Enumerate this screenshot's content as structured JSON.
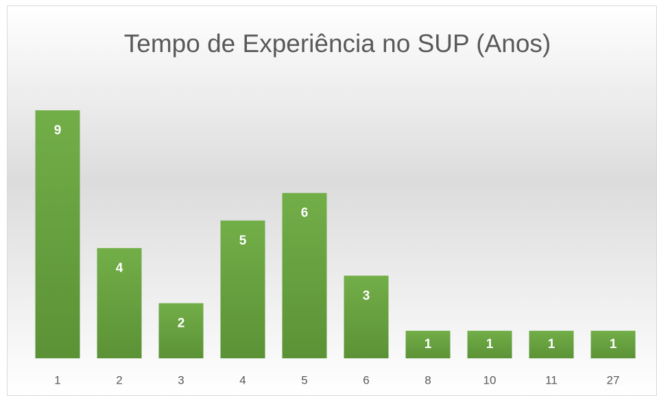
{
  "chart_data": {
    "type": "bar",
    "title": "Tempo de Experiência no SUP (Anos)",
    "categories": [
      "1",
      "2",
      "3",
      "4",
      "5",
      "6",
      "8",
      "10",
      "11",
      "27"
    ],
    "values": [
      9,
      4,
      2,
      5,
      6,
      3,
      1,
      1,
      1,
      1
    ],
    "color": "#70ad47"
  }
}
